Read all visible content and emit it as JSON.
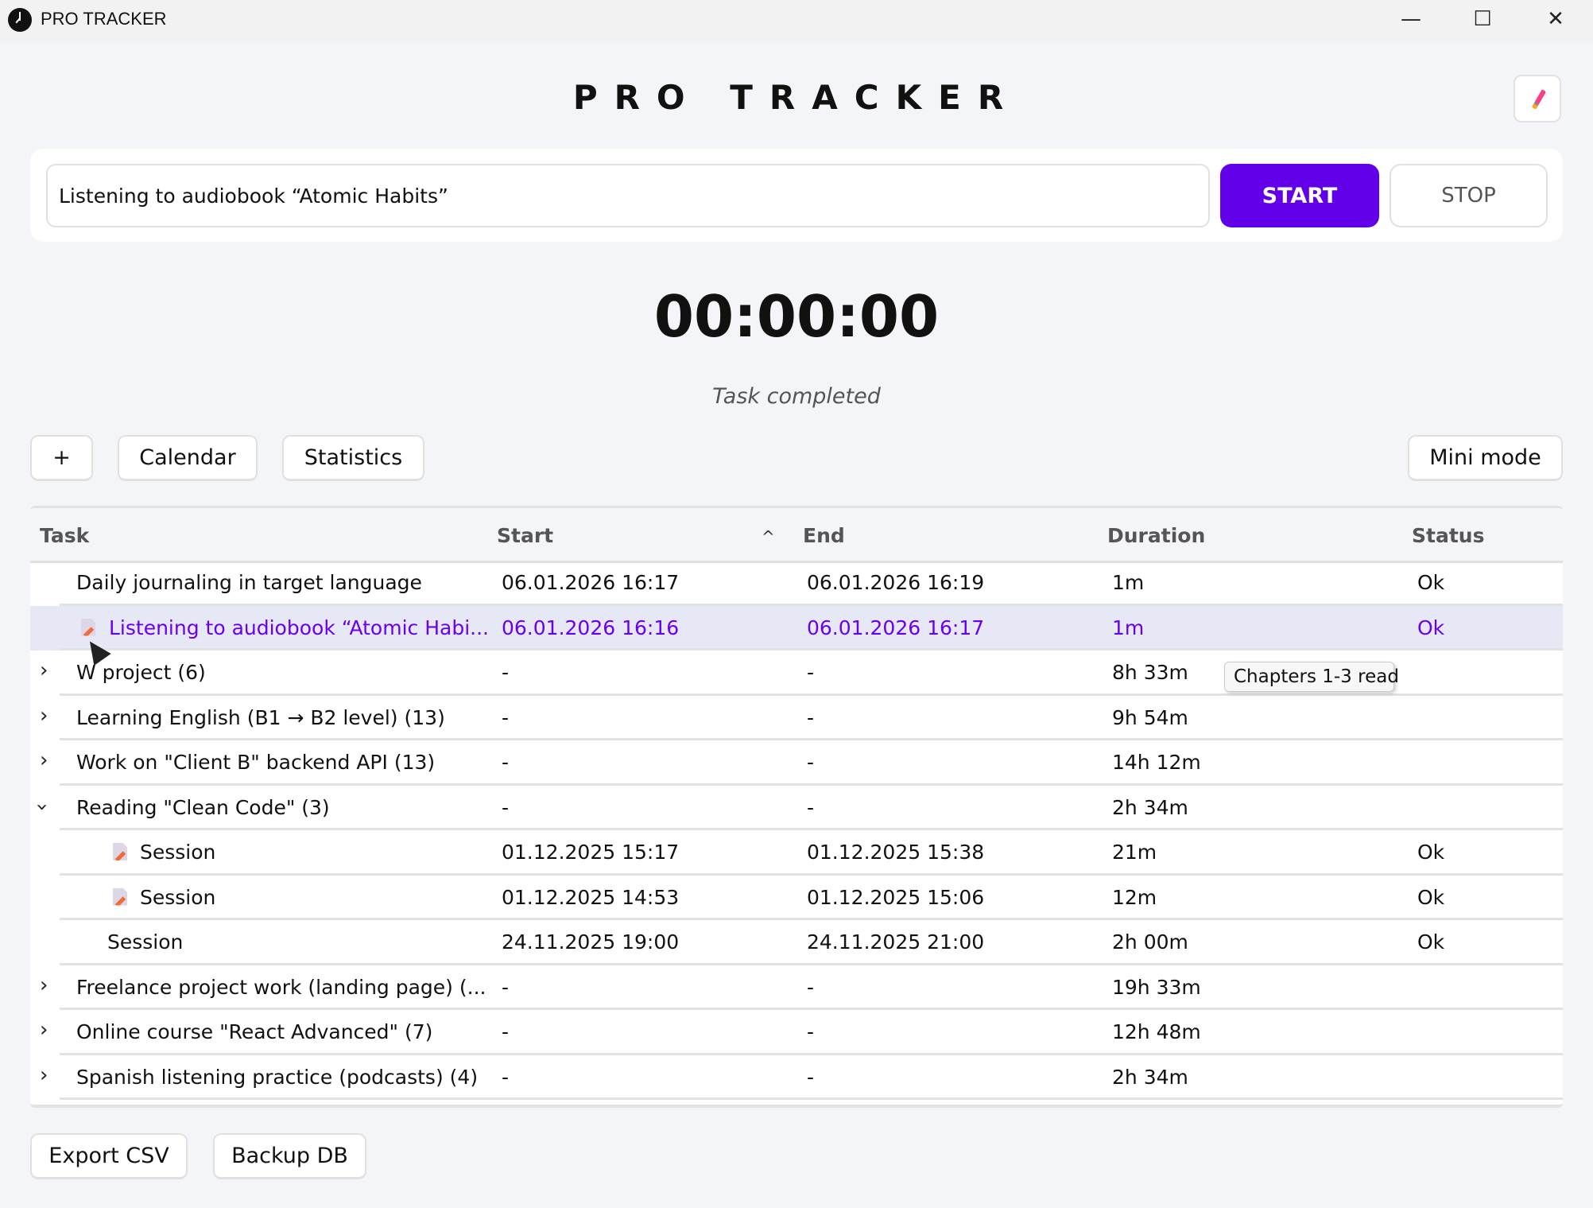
{
  "window": {
    "title": "PRO TRACKER",
    "minimize": "—",
    "maximize": "☐",
    "close": "✕"
  },
  "header": {
    "title": "PRO TRACKER",
    "theme_icon": "paintbrush-icon"
  },
  "controls": {
    "task_value": "Listening to audiobook “Atomic Habits”",
    "start_label": "START",
    "stop_label": "STOP",
    "accent": "#6200ea"
  },
  "timer": {
    "value": "00:00:00",
    "status": "Task completed"
  },
  "toolbar": {
    "add_label": "+",
    "calendar_label": "Calendar",
    "statistics_label": "Statistics",
    "mini_mode_label": "Mini mode"
  },
  "table": {
    "columns": [
      "Task",
      "Start",
      "End",
      "Duration",
      "Status"
    ],
    "sort_indicator": "^",
    "rows": [
      {
        "expander": "",
        "level": 0,
        "icon": false,
        "task": "Daily journaling in target language",
        "start": "06.01.2026 16:17",
        "end": "06.01.2026 16:19",
        "duration": "1m",
        "status": "Ok"
      },
      {
        "expander": "",
        "level": 0,
        "icon": true,
        "selected": true,
        "task": "Listening to audiobook “Atomic Habi...",
        "start": "06.01.2026 16:16",
        "end": "06.01.2026 16:17",
        "duration": "1m",
        "status": "Ok"
      },
      {
        "expander": "collapsed",
        "level": 0,
        "icon": false,
        "task": "W                       project (6)",
        "start": "-",
        "end": "-",
        "duration": "8h 33m",
        "status": ""
      },
      {
        "expander": "collapsed",
        "level": 0,
        "icon": false,
        "task": "Learning English (B1 → B2 level) (13)",
        "start": "-",
        "end": "-",
        "duration": "9h 54m",
        "status": ""
      },
      {
        "expander": "collapsed",
        "level": 0,
        "icon": false,
        "task": "Work on \"Client B\" backend API (13)",
        "start": "-",
        "end": "-",
        "duration": "14h 12m",
        "status": ""
      },
      {
        "expander": "expanded",
        "level": 0,
        "icon": false,
        "task": "Reading \"Clean Code\" (3)",
        "start": "-",
        "end": "-",
        "duration": "2h 34m",
        "status": ""
      },
      {
        "expander": "",
        "level": 1,
        "icon": true,
        "task": "Session",
        "start": "01.12.2025 15:17",
        "end": "01.12.2025 15:38",
        "duration": "21m",
        "status": "Ok"
      },
      {
        "expander": "",
        "level": 1,
        "icon": true,
        "task": "Session",
        "start": "01.12.2025 14:53",
        "end": "01.12.2025 15:06",
        "duration": "12m",
        "status": "Ok"
      },
      {
        "expander": "",
        "level": 1,
        "icon": false,
        "task": "Session",
        "start": "24.11.2025 19:00",
        "end": "24.11.2025 21:00",
        "duration": "2h 00m",
        "status": "Ok"
      },
      {
        "expander": "collapsed",
        "level": 0,
        "icon": false,
        "task": "Freelance project work (landing page) (...",
        "start": "-",
        "end": "-",
        "duration": "19h 33m",
        "status": ""
      },
      {
        "expander": "collapsed",
        "level": 0,
        "icon": false,
        "task": "Online course \"React Advanced\" (7)",
        "start": "-",
        "end": "-",
        "duration": "12h 48m",
        "status": ""
      },
      {
        "expander": "collapsed",
        "level": 0,
        "icon": false,
        "task": "Spanish listening practice (podcasts) (4)",
        "start": "-",
        "end": "-",
        "duration": "2h 34m",
        "status": ""
      }
    ]
  },
  "tooltip": {
    "text": "Chapters 1-3 read"
  },
  "footer": {
    "export_label": "Export CSV",
    "backup_label": "Backup DB"
  }
}
